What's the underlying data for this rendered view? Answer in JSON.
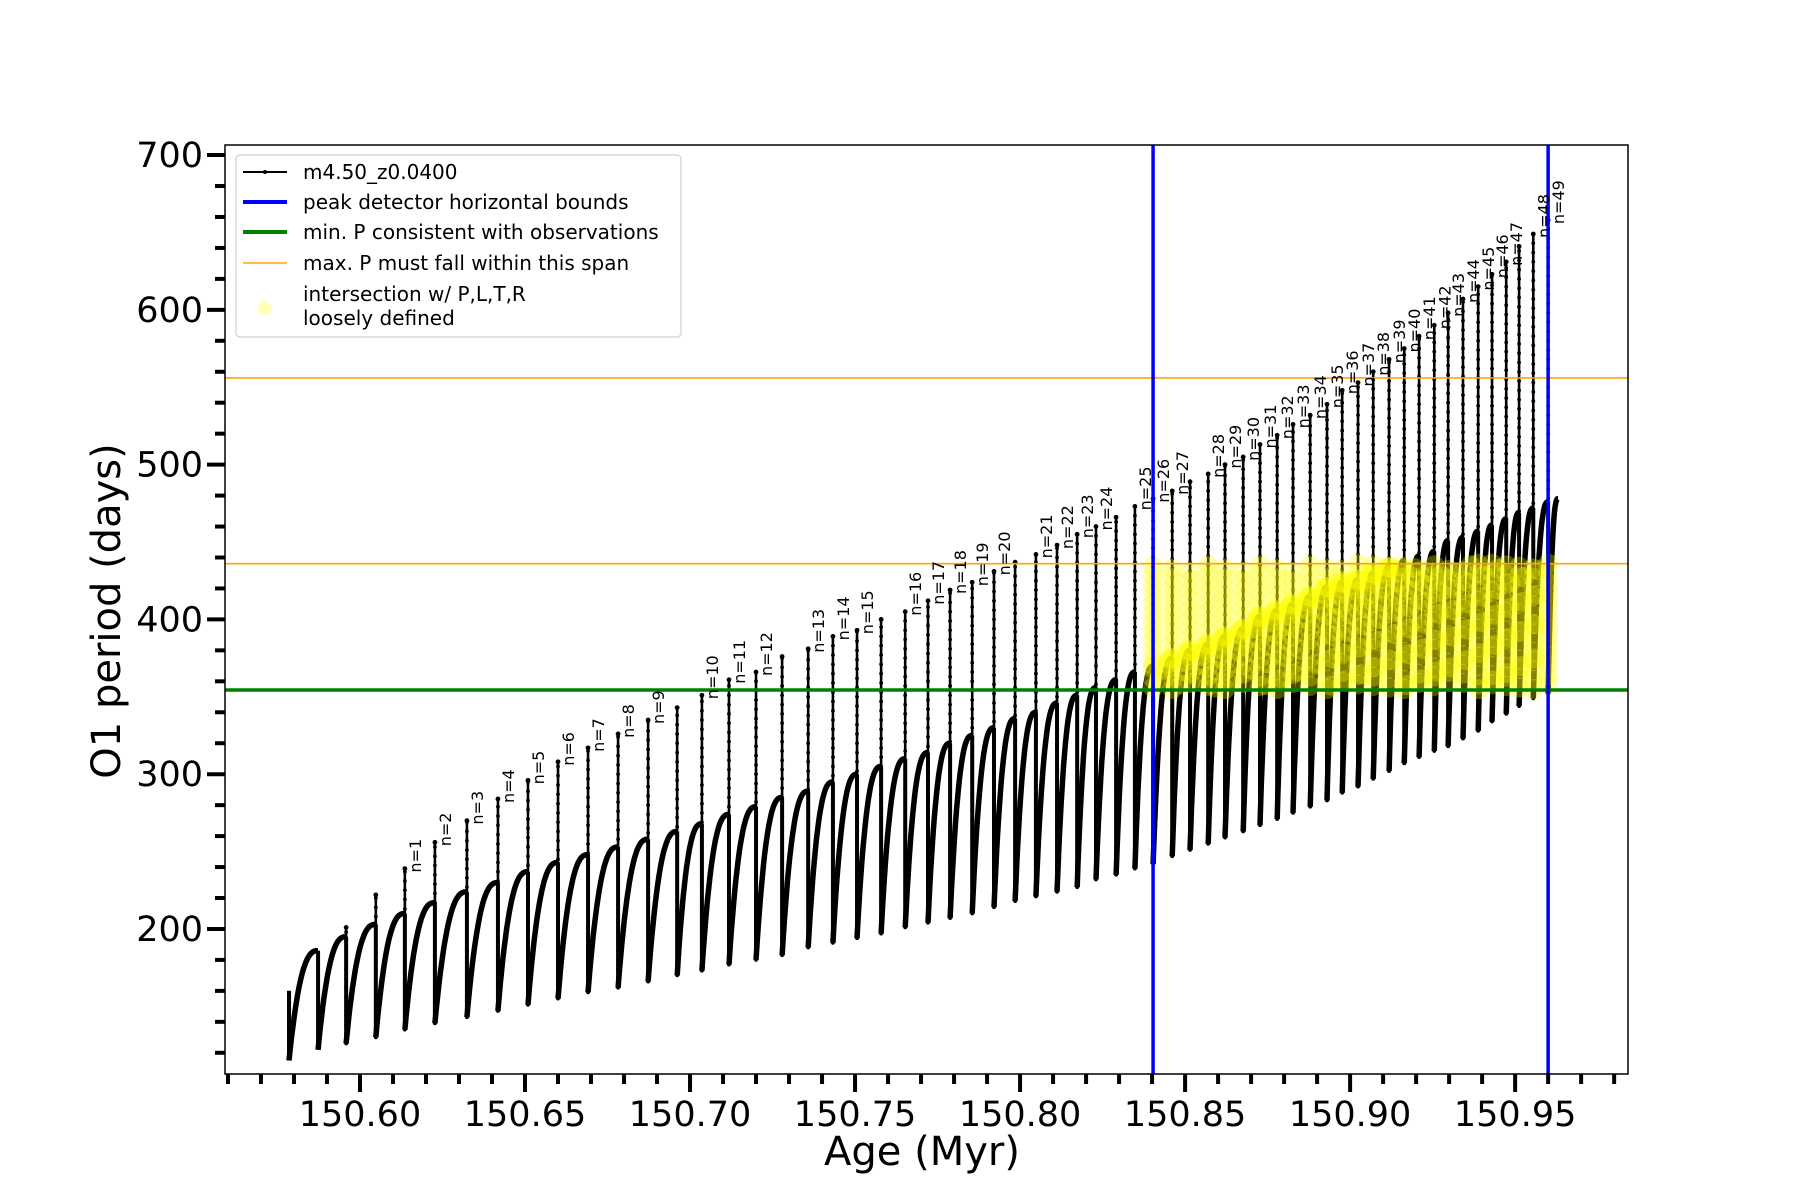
{
  "chart_data": {
    "type": "line",
    "xlabel": "Age (Myr)",
    "ylabel": "O1 period (days)",
    "xlim": [
      150.5591,
      150.9842
    ],
    "ylim": [
      106.3,
      706.5
    ],
    "grid": false,
    "legend_placement": "top-left",
    "x_ticks": [
      150.6,
      150.65,
      150.7,
      150.75,
      150.8,
      150.85,
      150.9,
      150.95
    ],
    "x_tick_labels": [
      "150.60",
      "150.65",
      "150.70",
      "150.75",
      "150.80",
      "150.85",
      "150.90",
      "150.95"
    ],
    "x_minor_step": 0.01,
    "y_ticks": [
      200,
      300,
      400,
      500,
      600,
      700
    ],
    "y_tick_labels": [
      "200",
      "300",
      "400",
      "500",
      "600",
      "700"
    ],
    "y_minor_step": 20,
    "legend": [
      {
        "label": "m4.50_z0.0400",
        "color": "#000000",
        "kind": "line-marker"
      },
      {
        "label": "peak detector horizontal bounds",
        "color": "#0000ff",
        "kind": "thick-line"
      },
      {
        "label": "min. P consistent with observations",
        "color": "#008000",
        "kind": "thick-line"
      },
      {
        "label": "max. P must fall within this span",
        "color": "#ffa500",
        "kind": "thin-line"
      },
      {
        "label": "intersection w/ P,L,T,R",
        "label2": "loosely defined",
        "color": "#ffff00",
        "kind": "circle"
      }
    ],
    "vertical_lines": {
      "color": "#0000ff",
      "ages": [
        150.8403,
        150.96
      ]
    },
    "min_period_line": {
      "color": "#008000",
      "value": 354.4
    },
    "max_period_span": {
      "color": "#ffa500",
      "values": [
        436,
        556
      ]
    },
    "series": {
      "name": "m4.50_z0.0400",
      "color": "#000000",
      "start_value": 160,
      "end_age": 150.963,
      "cycle_fields": [
        "age",
        "low",
        "arch_top",
        "spike_top",
        "label"
      ],
      "cycles": [
        [
          150.5785,
          115,
          186,
          null,
          null
        ],
        [
          150.5873,
          122,
          195,
          null,
          null
        ],
        [
          150.5958,
          126,
          203,
          201,
          null
        ],
        [
          150.6048,
          130,
          210,
          222,
          null
        ],
        [
          150.6136,
          135,
          217,
          239,
          "n=1"
        ],
        [
          150.6227,
          139,
          224,
          256,
          "n=2"
        ],
        [
          150.6324,
          143,
          230,
          270,
          "n=3"
        ],
        [
          150.6418,
          147,
          237,
          284,
          "n=4"
        ],
        [
          150.6509,
          151,
          243,
          296,
          "n=5"
        ],
        [
          150.66,
          155,
          248,
          308,
          "n=6"
        ],
        [
          150.6691,
          159,
          253,
          317,
          "n=7"
        ],
        [
          150.6782,
          162,
          258,
          326,
          "n=8"
        ],
        [
          150.6873,
          166,
          263,
          335,
          "n=9"
        ],
        [
          150.6961,
          170,
          268,
          343,
          null
        ],
        [
          150.7036,
          173,
          274,
          351,
          "n=10"
        ],
        [
          150.7118,
          177,
          279,
          361,
          "n=11"
        ],
        [
          150.72,
          180,
          285,
          366,
          "n=12"
        ],
        [
          150.7279,
          183,
          289,
          376,
          null
        ],
        [
          150.7358,
          188,
          295,
          381,
          "n=13"
        ],
        [
          150.7433,
          191,
          300,
          389,
          "n=14"
        ],
        [
          150.7506,
          194,
          305,
          393,
          "n=15"
        ],
        [
          150.7579,
          197,
          310,
          400,
          null
        ],
        [
          150.7652,
          201,
          314,
          405,
          "n=16"
        ],
        [
          150.7721,
          204,
          320,
          412,
          "n=17"
        ],
        [
          150.7788,
          207,
          325,
          419,
          "n=18"
        ],
        [
          150.7855,
          210,
          330,
          424,
          "n=19"
        ],
        [
          150.7921,
          214,
          336,
          431,
          "n=20"
        ],
        [
          150.7985,
          218,
          340,
          437,
          null
        ],
        [
          150.8048,
          221,
          346,
          442,
          "n=21"
        ],
        [
          150.8112,
          224,
          351,
          448,
          "n=22"
        ],
        [
          150.8173,
          227,
          356,
          455,
          "n=23"
        ],
        [
          150.823,
          232,
          361,
          460,
          "n=24"
        ],
        [
          150.8291,
          235,
          366,
          466,
          null
        ],
        [
          150.8348,
          239,
          370,
          473,
          "n=25"
        ],
        [
          150.8403,
          242,
          375,
          478,
          "n=26"
        ],
        [
          150.8461,
          247,
          380,
          483,
          "n=27"
        ],
        [
          150.8515,
          251,
          384,
          489,
          null
        ],
        [
          150.857,
          255,
          389,
          494,
          "n=28"
        ],
        [
          150.8621,
          259,
          394,
          500,
          "n=29"
        ],
        [
          150.8676,
          263,
          402,
          505,
          "n=30"
        ],
        [
          150.8727,
          267,
          406,
          513,
          "n=31"
        ],
        [
          150.8779,
          271,
          410,
          519,
          "n=32"
        ],
        [
          150.8827,
          275,
          415,
          526,
          "n=33"
        ],
        [
          150.8879,
          279,
          421,
          532,
          "n=34"
        ],
        [
          150.893,
          283,
          424,
          539,
          "n=35"
        ],
        [
          150.8976,
          288,
          426,
          548,
          "n=36"
        ],
        [
          150.9024,
          292,
          430,
          553,
          "n=37"
        ],
        [
          150.907,
          297,
          434,
          560,
          "n=38"
        ],
        [
          150.9118,
          302,
          438,
          568,
          "n=39"
        ],
        [
          150.9164,
          307,
          441,
          575,
          "n=40"
        ],
        [
          150.9209,
          311,
          444,
          583,
          "n=41"
        ],
        [
          150.9255,
          315,
          451,
          590,
          "n=42"
        ],
        [
          150.9297,
          318,
          453,
          598,
          "n=43"
        ],
        [
          150.9342,
          323,
          457,
          607,
          "n=44"
        ],
        [
          150.9388,
          328,
          461,
          615,
          "n=45"
        ],
        [
          150.943,
          334,
          465,
          623,
          "n=46"
        ],
        [
          150.9473,
          339,
          469,
          631,
          "n=47"
        ],
        [
          150.9512,
          344,
          472,
          641,
          null
        ],
        [
          150.9555,
          349,
          476,
          649,
          "n=48"
        ],
        [
          150.96,
          352,
          478,
          658,
          "n=49"
        ]
      ]
    },
    "intersection_points": {
      "color": "#ffff00",
      "rule": "model points between the blue bounds with period between the green line and the lower orange line"
    }
  }
}
